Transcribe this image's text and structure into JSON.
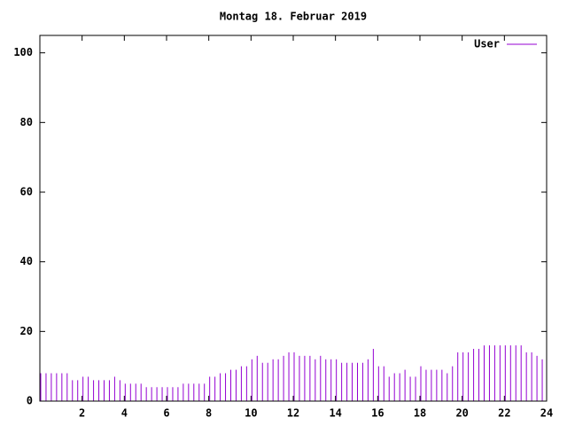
{
  "chart_data": {
    "type": "impulse",
    "title": "Montag 18. Februar 2019",
    "series": [
      {
        "name": "User",
        "color": "#9400d3",
        "x": [
          0,
          0.25,
          0.5,
          0.75,
          1,
          1.25,
          1.5,
          1.75,
          2,
          2.25,
          2.5,
          2.75,
          3,
          3.25,
          3.5,
          3.75,
          4,
          4.25,
          4.5,
          4.75,
          5,
          5.25,
          5.5,
          5.75,
          6,
          6.25,
          6.5,
          6.75,
          7,
          7.25,
          7.5,
          7.75,
          8,
          8.25,
          8.5,
          8.75,
          9,
          9.25,
          9.5,
          9.75,
          10,
          10.25,
          10.5,
          10.75,
          11,
          11.25,
          11.5,
          11.75,
          12,
          12.25,
          12.5,
          12.75,
          13,
          13.25,
          13.5,
          13.75,
          14,
          14.25,
          14.5,
          14.75,
          15,
          15.25,
          15.5,
          15.75,
          16,
          16.25,
          16.5,
          16.75,
          17,
          17.25,
          17.5,
          17.75,
          18,
          18.25,
          18.5,
          18.75,
          19,
          19.25,
          19.5,
          19.75,
          20,
          20.25,
          20.5,
          20.75,
          21,
          21.25,
          21.5,
          21.75,
          22,
          22.25,
          22.5,
          22.75,
          23,
          23.25,
          23.5,
          23.75
        ],
        "values": [
          8,
          8,
          8,
          8,
          8,
          8,
          6,
          6,
          7,
          7,
          6,
          6,
          6,
          6,
          7,
          6,
          5,
          5,
          5,
          5,
          4,
          4,
          4,
          4,
          4,
          4,
          4,
          5,
          5,
          5,
          5,
          5,
          7,
          7,
          8,
          8,
          9,
          9,
          10,
          10,
          12,
          13,
          11,
          11,
          12,
          12,
          13,
          14,
          14,
          13,
          13,
          13,
          12,
          13,
          12,
          12,
          12,
          11,
          11,
          11,
          11,
          11,
          12,
          15,
          10,
          10,
          7,
          8,
          8,
          9,
          7,
          7,
          10,
          9,
          9,
          9,
          9,
          8,
          10,
          14,
          14,
          14,
          15,
          15,
          16,
          16,
          16,
          16,
          16,
          16,
          16,
          16,
          14,
          14,
          13,
          12
        ]
      }
    ],
    "xlim": [
      0,
      24
    ],
    "xticks": [
      2,
      4,
      6,
      8,
      10,
      12,
      14,
      16,
      18,
      20,
      22,
      24
    ],
    "ylim": [
      0,
      105
    ],
    "yticks": [
      0,
      20,
      40,
      60,
      80,
      100
    ]
  }
}
